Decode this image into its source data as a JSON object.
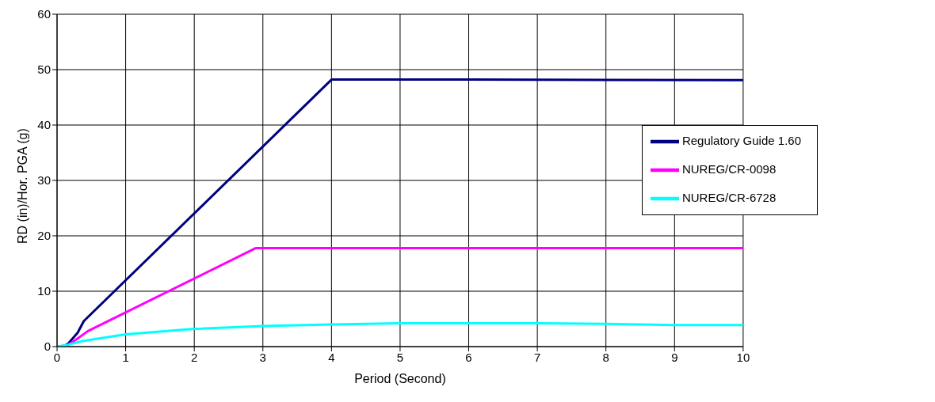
{
  "chart_data": {
    "type": "line",
    "xlabel": "Period (Second)",
    "ylabel": "RD (in)/Hor. PGA (g)",
    "xlim": [
      0,
      10
    ],
    "xticks": [
      0,
      1,
      2,
      3,
      4,
      5,
      6,
      7,
      8,
      9,
      10
    ],
    "ylim": [
      0,
      60
    ],
    "yticks": [
      0,
      10,
      20,
      30,
      40,
      50,
      60
    ],
    "grid": true,
    "legend": "right",
    "marker": "none",
    "line_style": "solid",
    "series": [
      {
        "name": "Regulatory Guide 1.60",
        "color": "#000080",
        "x": [
          0,
          0.1,
          0.16,
          0.3,
          0.39,
          4,
          6,
          10
        ],
        "values": [
          0,
          0.1,
          0.5,
          2.5,
          4.6,
          48.2,
          48.2,
          48.1
        ]
      },
      {
        "name": "NUREG/CR-0098",
        "color": "#ff00ff",
        "x": [
          0,
          0.15,
          0.28,
          0.45,
          2.9,
          10
        ],
        "values": [
          0,
          0.2,
          1.3,
          2.8,
          17.8,
          17.8
        ]
      },
      {
        "name": "NUREG/CR-6728",
        "color": "#00ffff",
        "x": [
          0,
          0.15,
          0.37,
          1,
          2,
          3,
          4,
          5,
          6,
          7,
          8,
          9,
          10
        ],
        "values": [
          0,
          0.3,
          1,
          2.2,
          3.2,
          3.7,
          4,
          4.2,
          4.2,
          4.2,
          4.1,
          3.9,
          3.9
        ]
      }
    ]
  }
}
